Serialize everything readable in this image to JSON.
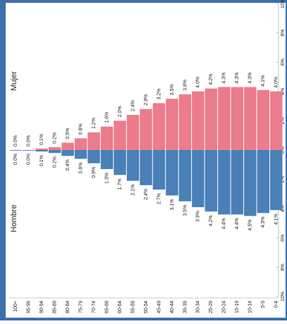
{
  "chart_data": {
    "type": "pyramid",
    "categories": [
      "100+",
      "95-99",
      "90-94",
      "85-89",
      "80-84",
      "75-79",
      "70-74",
      "65-69",
      "60-64",
      "55-59",
      "50-54",
      "45-49",
      "40-44",
      "35-39",
      "30-34",
      "25-29",
      "20-24",
      "15-19",
      "10-14",
      "5-9",
      "0-4"
    ],
    "series": [
      {
        "name": "Mujer",
        "color": "#ec7b8c",
        "values": [
          0.0,
          0.0,
          0.1,
          0.2,
          0.5,
          0.8,
          1.2,
          1.6,
          2.0,
          2.4,
          2.8,
          3.2,
          3.5,
          3.8,
          4.0,
          4.2,
          4.3,
          4.3,
          4.3,
          4.1,
          4.0
        ],
        "value_labels": [
          "0.0%",
          "0.0%",
          "0.1%",
          "0.2%",
          "0.5%",
          "0.8%",
          "1.2%",
          "1.6%",
          "2.0%",
          "2.4%",
          "2.8%",
          "3.2%",
          "3.5%",
          "3.8%",
          "4.0%",
          "4.2%",
          "4.3%",
          "4.3%",
          "4.3%",
          "4.1%",
          "4.0%"
        ]
      },
      {
        "name": "Hombre",
        "color": "#4a80b8",
        "values": [
          -0.0,
          -0.0,
          -0.1,
          -0.2,
          -0.4,
          -0.6,
          -0.9,
          -1.3,
          -1.7,
          -2.1,
          -2.4,
          -2.7,
          -3.1,
          -3.5,
          -3.9,
          -4.2,
          -4.4,
          -4.4,
          -4.5,
          -4.3,
          -4.1
        ],
        "value_labels": [
          "0.0%",
          "0.0%",
          "0.1%",
          "0.2%",
          "0.4%",
          "0.6%",
          "0.9%",
          "1.3%",
          "1.7%",
          "2.1%",
          "2.4%",
          "2.7%",
          "3.1%",
          "3.5%",
          "3.9%",
          "4.2%",
          "4.4%",
          "4.4%",
          "4.5%",
          "4.3%",
          "4.1%"
        ]
      }
    ],
    "ylim": [
      -10,
      10
    ],
    "yticks": [
      {
        "value": -10,
        "label": "10%"
      },
      {
        "value": -8,
        "label": "8%"
      },
      {
        "value": -6,
        "label": "6%"
      },
      {
        "value": -4,
        "label": "4%"
      },
      {
        "value": -2,
        "label": "2%"
      },
      {
        "value": 0,
        "label": "0%"
      },
      {
        "value": 2,
        "label": "2%"
      },
      {
        "value": 4,
        "label": "4%"
      },
      {
        "value": 6,
        "label": "6%"
      },
      {
        "value": 8,
        "label": "8%"
      },
      {
        "value": 10,
        "label": "10%"
      }
    ]
  }
}
